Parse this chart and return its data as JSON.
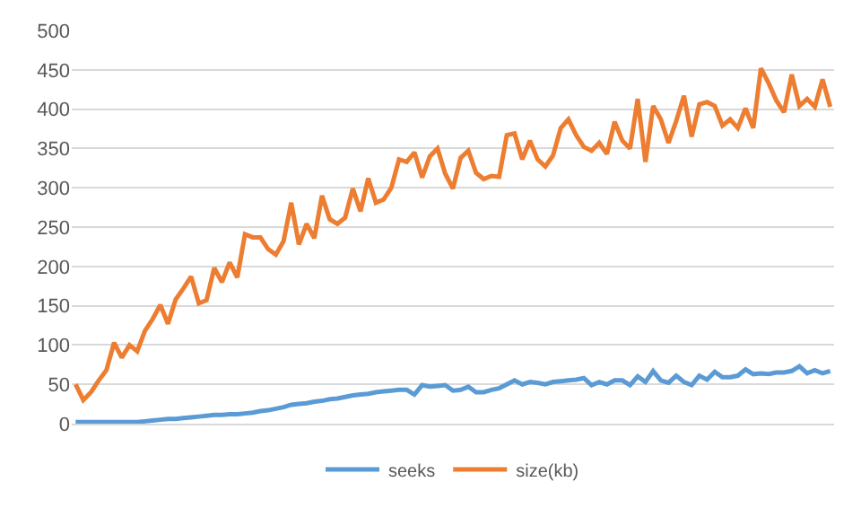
{
  "chart_data": {
    "type": "line",
    "categories": [
      null,
      null,
      null,
      null,
      null,
      null,
      null,
      null,
      null,
      null,
      null,
      null,
      null,
      null,
      null,
      null,
      null,
      null,
      null,
      null,
      null,
      null,
      null,
      null,
      null,
      null,
      null,
      null,
      null,
      null,
      null,
      null,
      null,
      null,
      null,
      null,
      null,
      null,
      null,
      null,
      null,
      null,
      null,
      null,
      null,
      null,
      null,
      null,
      null,
      null,
      null,
      null,
      null,
      null,
      null,
      null,
      null,
      null,
      null,
      null,
      null,
      null,
      null,
      null,
      null,
      null,
      null,
      null,
      null,
      null,
      null,
      null,
      null,
      null,
      null,
      null,
      null,
      null,
      null,
      null,
      null,
      null,
      null,
      null,
      null,
      null,
      null,
      null,
      null,
      null,
      null,
      null,
      null,
      null,
      null,
      null,
      null,
      null,
      null
    ],
    "series": [
      {
        "name": "seeks",
        "color": "#5b9bd5",
        "values": [
          2,
          2,
          2,
          2,
          2,
          2,
          2,
          2,
          2,
          3,
          4,
          5,
          6,
          6,
          7,
          8,
          9,
          10,
          11,
          11,
          12,
          12,
          13,
          14,
          16,
          17,
          19,
          21,
          24,
          25,
          26,
          28,
          29,
          31,
          32,
          34,
          36,
          37,
          38,
          40,
          41,
          42,
          43,
          43,
          37,
          49,
          47,
          48,
          49,
          42,
          43,
          47,
          40,
          40,
          43,
          45,
          50,
          55,
          50,
          53,
          52,
          50,
          53,
          54,
          55,
          56,
          58,
          49,
          53,
          50,
          55,
          55,
          49,
          60,
          53,
          67,
          55,
          52,
          61,
          53,
          49,
          61,
          56,
          66,
          59,
          59,
          61,
          69,
          63,
          64,
          63,
          65,
          65,
          67,
          73,
          64,
          68,
          64,
          67
        ]
      },
      {
        "name": "size(kb)",
        "color": "#ed7d31",
        "values": [
          50,
          30,
          40,
          55,
          68,
          103,
          84,
          100,
          92,
          118,
          133,
          151,
          127,
          158,
          172,
          187,
          153,
          157,
          198,
          180,
          205,
          186,
          241,
          237,
          237,
          222,
          215,
          232,
          281,
          228,
          254,
          236,
          290,
          260,
          254,
          262,
          299,
          270,
          312,
          281,
          285,
          300,
          336,
          333,
          345,
          313,
          340,
          350,
          318,
          299,
          338,
          347,
          319,
          311,
          315,
          314,
          367,
          369,
          336,
          360,
          336,
          327,
          341,
          376,
          387,
          367,
          352,
          347,
          357,
          343,
          384,
          360,
          350,
          413,
          333,
          404,
          387,
          357,
          385,
          417,
          365,
          406,
          409,
          404,
          379,
          387,
          376,
          401,
          376,
          452,
          433,
          411,
          396,
          444,
          404,
          413,
          403,
          438,
          403
        ]
      }
    ],
    "ylim": [
      0,
      500
    ],
    "yticks": [
      0,
      50,
      100,
      150,
      200,
      250,
      300,
      350,
      400,
      450,
      500
    ],
    "grid": "y",
    "legend": "bottom",
    "marker": "none",
    "line_style": "solid"
  }
}
